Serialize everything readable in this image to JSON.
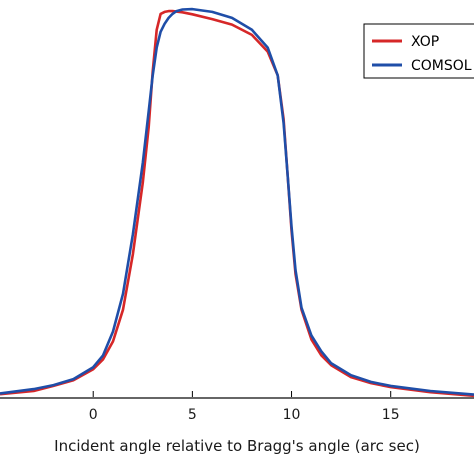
{
  "chart_data": {
    "type": "line",
    "xlabel": "Incident angle relative to Bragg's angle (arc sec)",
    "ylabel": "",
    "title": "",
    "xlim": [
      -4.7,
      19.2
    ],
    "ylim": [
      0,
      1.0
    ],
    "x_ticks": [
      {
        "value": 0,
        "label": "0"
      },
      {
        "value": 5,
        "label": "5"
      },
      {
        "value": 10,
        "label": "10"
      },
      {
        "value": 15,
        "label": "15"
      }
    ],
    "grid": false,
    "legend": {
      "position": "top-right"
    },
    "series": [
      {
        "name": "XOP",
        "color": "#d62728",
        "x": [
          -4.7,
          -3.0,
          -2.0,
          -1.0,
          0.0,
          0.5,
          1.0,
          1.5,
          2.0,
          2.5,
          2.8,
          3.0,
          3.2,
          3.4,
          3.6,
          3.8,
          4.0,
          4.5,
          5.0,
          6.0,
          7.0,
          8.0,
          8.8,
          9.3,
          9.6,
          9.8,
          10.0,
          10.2,
          10.5,
          11.0,
          11.5,
          12.0,
          13.0,
          14.0,
          15.0,
          17.0,
          19.2
        ],
        "y": [
          0.007,
          0.015,
          0.028,
          0.042,
          0.07,
          0.095,
          0.14,
          0.22,
          0.36,
          0.54,
          0.68,
          0.82,
          0.925,
          0.965,
          0.97,
          0.972,
          0.972,
          0.969,
          0.964,
          0.952,
          0.938,
          0.912,
          0.87,
          0.81,
          0.7,
          0.56,
          0.42,
          0.31,
          0.22,
          0.145,
          0.105,
          0.08,
          0.05,
          0.035,
          0.025,
          0.012,
          0.003
        ]
      },
      {
        "name": "COMSOL",
        "color": "#1f4ea8",
        "x": [
          -4.7,
          -3.0,
          -2.0,
          -1.0,
          0.0,
          0.5,
          1.0,
          1.5,
          2.0,
          2.5,
          2.8,
          3.0,
          3.2,
          3.4,
          3.6,
          3.8,
          4.0,
          4.2,
          4.5,
          5.0,
          6.0,
          7.0,
          8.0,
          8.8,
          9.3,
          9.6,
          9.8,
          10.0,
          10.2,
          10.5,
          11.0,
          11.5,
          12.0,
          13.0,
          14.0,
          15.0,
          17.0,
          19.2
        ],
        "y": [
          0.009,
          0.02,
          0.03,
          0.045,
          0.075,
          0.105,
          0.165,
          0.26,
          0.41,
          0.59,
          0.72,
          0.81,
          0.88,
          0.92,
          0.94,
          0.955,
          0.965,
          0.972,
          0.976,
          0.977,
          0.97,
          0.955,
          0.925,
          0.88,
          0.81,
          0.69,
          0.56,
          0.43,
          0.32,
          0.225,
          0.155,
          0.115,
          0.085,
          0.055,
          0.038,
          0.028,
          0.015,
          0.006
        ]
      }
    ]
  }
}
